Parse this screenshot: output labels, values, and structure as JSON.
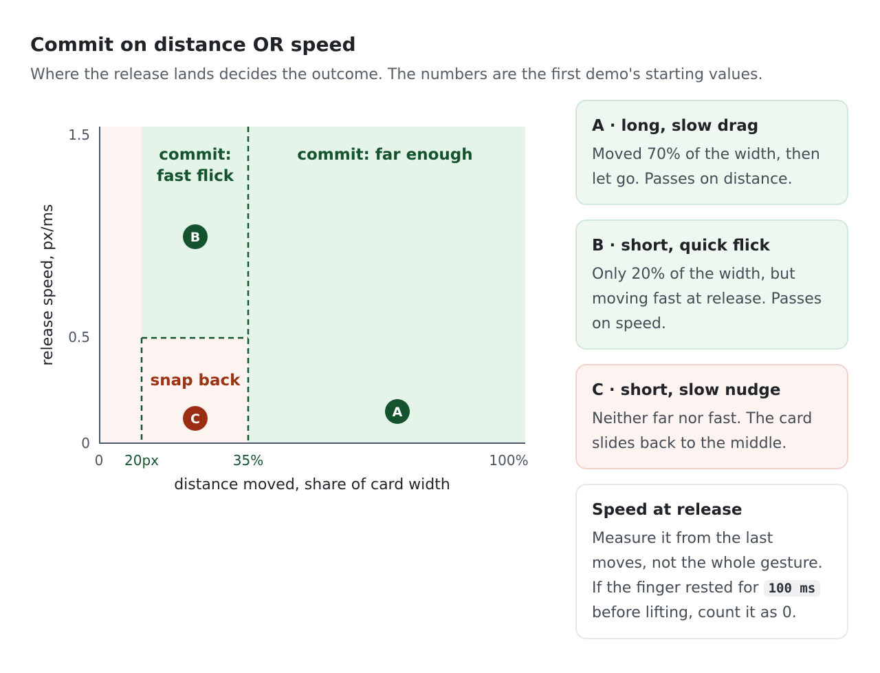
{
  "header": {
    "title": "Commit on distance OR speed",
    "subtitle": "Where the release lands decides the outcome. The numbers are the first demo's starting values."
  },
  "diagram": {
    "x_axis": {
      "label": "distance moved, share of card width",
      "ticks": [
        "0",
        "20px",
        "35%",
        "100%"
      ]
    },
    "y_axis": {
      "label": "release speed, px/ms",
      "ticks": [
        "1.5",
        "0.5",
        "0"
      ],
      "range": [
        0,
        1.5
      ]
    },
    "regions": {
      "fast_flick": "commit:",
      "fast_flick_2": "fast flick",
      "far_enough": "commit: far enough",
      "snap_back": "snap back"
    },
    "points": [
      {
        "label": "A",
        "distance_pct": 70,
        "speed": 0.15,
        "outcome": "commit"
      },
      {
        "label": "B",
        "distance_pct": 20,
        "speed": 0.97,
        "outcome": "commit"
      },
      {
        "label": "C",
        "distance_pct": 20,
        "speed": 0.12,
        "outcome": "snap"
      }
    ],
    "colors": {
      "commit_fill": "#e5f4e9",
      "snap_fill": "#fdf3f1",
      "commit_ink": "#14532d",
      "snap_ink": "#9a3412",
      "point_commit": "#14532d",
      "point_snap": "#9a2e12"
    }
  },
  "cards": [
    {
      "id": "a",
      "tone": "green",
      "title": "A · long, slow drag",
      "body": "Moved 70% of the width, then let go. Passes on distance."
    },
    {
      "id": "b",
      "tone": "green",
      "title": "B · short, quick flick",
      "body": "Only 20% of the width, but moving fast at release. Passes on speed."
    },
    {
      "id": "c",
      "tone": "red",
      "title": "C · short, slow nudge",
      "body": "Neither far nor fast. The card slides back to the middle."
    }
  ],
  "speed_card": {
    "title": "Speed at release",
    "body_before": "Measure it from the last moves, not the whole gesture. If the finger rested for",
    "code": "100 ms",
    "body_after": "before lifting, count it as 0."
  }
}
